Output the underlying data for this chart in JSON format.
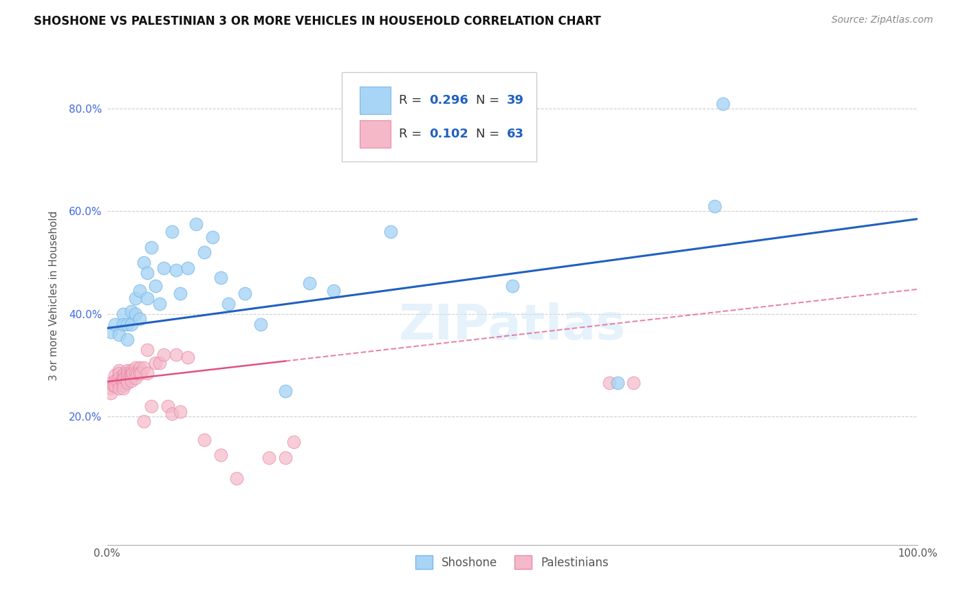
{
  "title": "SHOSHONE VS PALESTINIAN 3 OR MORE VEHICLES IN HOUSEHOLD CORRELATION CHART",
  "source": "Source: ZipAtlas.com",
  "ylabel": "3 or more Vehicles in Household",
  "xlim": [
    0.0,
    1.0
  ],
  "ylim": [
    -0.05,
    0.92
  ],
  "shoshone_r": 0.296,
  "shoshone_n": 39,
  "palestinian_r": 0.102,
  "palestinian_n": 63,
  "shoshone_color": "#a8d4f5",
  "shoshone_edge": "#7ab8e8",
  "shoshone_line_color": "#2060c0",
  "palestinian_color": "#f5b8c8",
  "palestinian_edge": "#e88aaa",
  "palestinian_line_color": "#e05080",
  "background_color": "#ffffff",
  "grid_color": "#cccccc",
  "shoshone_x": [
    0.005,
    0.01,
    0.015,
    0.02,
    0.02,
    0.025,
    0.025,
    0.03,
    0.03,
    0.035,
    0.035,
    0.04,
    0.04,
    0.045,
    0.05,
    0.05,
    0.055,
    0.06,
    0.065,
    0.07,
    0.08,
    0.085,
    0.09,
    0.1,
    0.11,
    0.12,
    0.13,
    0.14,
    0.15,
    0.17,
    0.19,
    0.22,
    0.25,
    0.28,
    0.35,
    0.5,
    0.63,
    0.75,
    0.76
  ],
  "shoshone_y": [
    0.365,
    0.38,
    0.36,
    0.4,
    0.38,
    0.38,
    0.35,
    0.405,
    0.38,
    0.43,
    0.4,
    0.445,
    0.39,
    0.5,
    0.48,
    0.43,
    0.53,
    0.455,
    0.42,
    0.49,
    0.56,
    0.485,
    0.44,
    0.49,
    0.575,
    0.52,
    0.55,
    0.47,
    0.42,
    0.44,
    0.38,
    0.25,
    0.46,
    0.445,
    0.56,
    0.455,
    0.265,
    0.61,
    0.81
  ],
  "palestinian_x": [
    0.005,
    0.005,
    0.005,
    0.008,
    0.01,
    0.01,
    0.01,
    0.012,
    0.015,
    0.015,
    0.015,
    0.015,
    0.015,
    0.018,
    0.02,
    0.02,
    0.02,
    0.02,
    0.02,
    0.02,
    0.022,
    0.022,
    0.025,
    0.025,
    0.025,
    0.025,
    0.025,
    0.025,
    0.028,
    0.03,
    0.03,
    0.03,
    0.03,
    0.03,
    0.032,
    0.035,
    0.035,
    0.035,
    0.038,
    0.04,
    0.04,
    0.042,
    0.045,
    0.045,
    0.05,
    0.05,
    0.055,
    0.06,
    0.065,
    0.07,
    0.075,
    0.08,
    0.085,
    0.09,
    0.1,
    0.12,
    0.14,
    0.16,
    0.2,
    0.22,
    0.23,
    0.62,
    0.65
  ],
  "palestinian_y": [
    0.265,
    0.255,
    0.245,
    0.26,
    0.28,
    0.27,
    0.26,
    0.27,
    0.29,
    0.285,
    0.275,
    0.265,
    0.255,
    0.27,
    0.28,
    0.275,
    0.27,
    0.265,
    0.26,
    0.255,
    0.285,
    0.275,
    0.29,
    0.285,
    0.28,
    0.275,
    0.27,
    0.265,
    0.28,
    0.29,
    0.285,
    0.28,
    0.275,
    0.27,
    0.285,
    0.295,
    0.285,
    0.275,
    0.285,
    0.295,
    0.285,
    0.285,
    0.295,
    0.19,
    0.33,
    0.285,
    0.22,
    0.305,
    0.305,
    0.32,
    0.22,
    0.205,
    0.32,
    0.21,
    0.315,
    0.155,
    0.125,
    0.08,
    0.12,
    0.12,
    0.15,
    0.265,
    0.265
  ]
}
